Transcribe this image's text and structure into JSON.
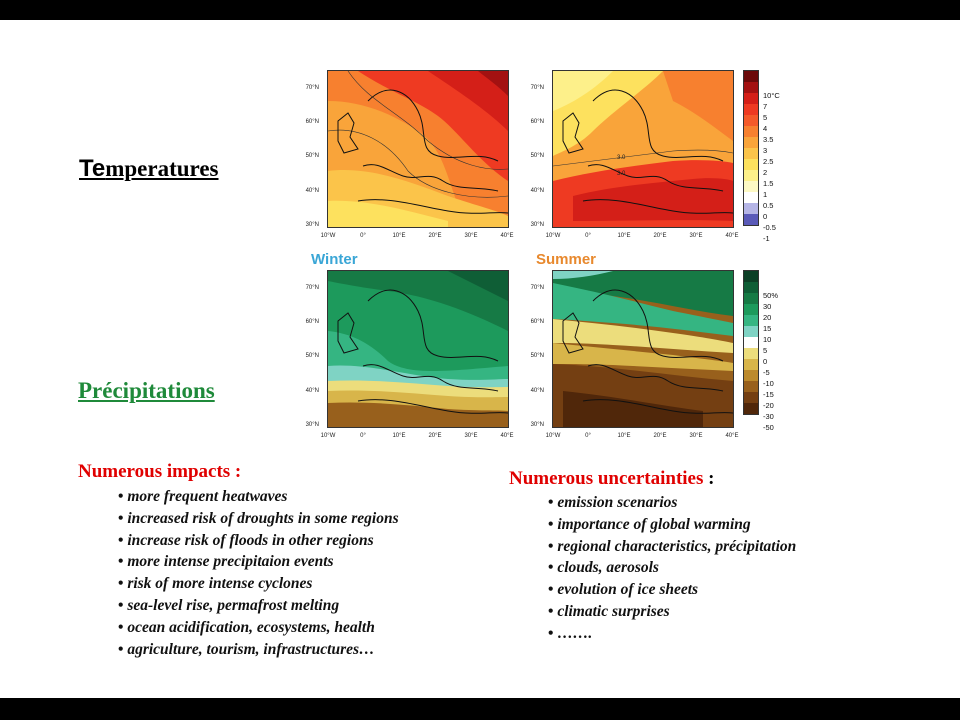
{
  "titles": {
    "temperatures_lead": "Te",
    "temperatures_rest": "mperatures",
    "precipitations": "Précipitations"
  },
  "seasons": {
    "winter": "Winter",
    "summer": "Summer"
  },
  "maps": {
    "lat_labels": [
      "70°N",
      "60°N",
      "50°N",
      "40°N",
      "30°N"
    ],
    "lon_labels": [
      "10°W",
      "0°",
      "10°E",
      "20°E",
      "30°E",
      "40°E"
    ],
    "contour_labels": [
      "3.0",
      "3.0"
    ]
  },
  "temperature_scale": {
    "labels": [
      "10°C",
      "7",
      "5",
      "4",
      "3.5",
      "3",
      "2.5",
      "2",
      "1.5",
      "1",
      "0.5",
      "0",
      "-0.5",
      "-1"
    ],
    "colors": [
      "#6b0a0a",
      "#a31111",
      "#d41f18",
      "#ee3a22",
      "#f45a2a",
      "#f7802f",
      "#f9a43a",
      "#fbc44a",
      "#fde15e",
      "#fdf08a",
      "#fdf9c4",
      "#ffffff",
      "#b5b5e6",
      "#5a5ab8"
    ]
  },
  "precip_scale": {
    "labels": [
      "50%",
      "30",
      "20",
      "15",
      "10",
      "5",
      "0",
      "-5",
      "-10",
      "-15",
      "-20",
      "-30",
      "-50"
    ],
    "colors": [
      "#0c3f26",
      "#0f5e36",
      "#167a45",
      "#1d9a5c",
      "#35b582",
      "#7fd3c4",
      "#ffffff",
      "#ecdd7c",
      "#d8b54a",
      "#bc8a2c",
      "#98601c",
      "#743f12",
      "#50270a"
    ]
  },
  "impacts": {
    "heading": "Numerous impacts :",
    "items": [
      "more frequent heatwaves",
      "increased risk of droughts in some regions",
      "increase risk of floods in other regions",
      "more intense precipitaion events",
      "risk of more intense cyclones",
      "sea-level rise, permafrost melting",
      "ocean acidification, ecosystems, health",
      "agriculture, tourism, infrastructures…"
    ]
  },
  "uncertainties": {
    "heading": "Numerous uncertainties",
    "heading_suffix": " :",
    "items": [
      "emission scenarios",
      "importance of global warming",
      "regional characteristics, précipitation",
      "clouds, aerosols",
      "evolution of ice sheets",
      "climatic surprises",
      "……."
    ]
  },
  "colors": {
    "red_heading": "#e00000",
    "green_heading": "#1f8a3a",
    "winter": "#3aa6d6",
    "summer": "#e8892e"
  }
}
